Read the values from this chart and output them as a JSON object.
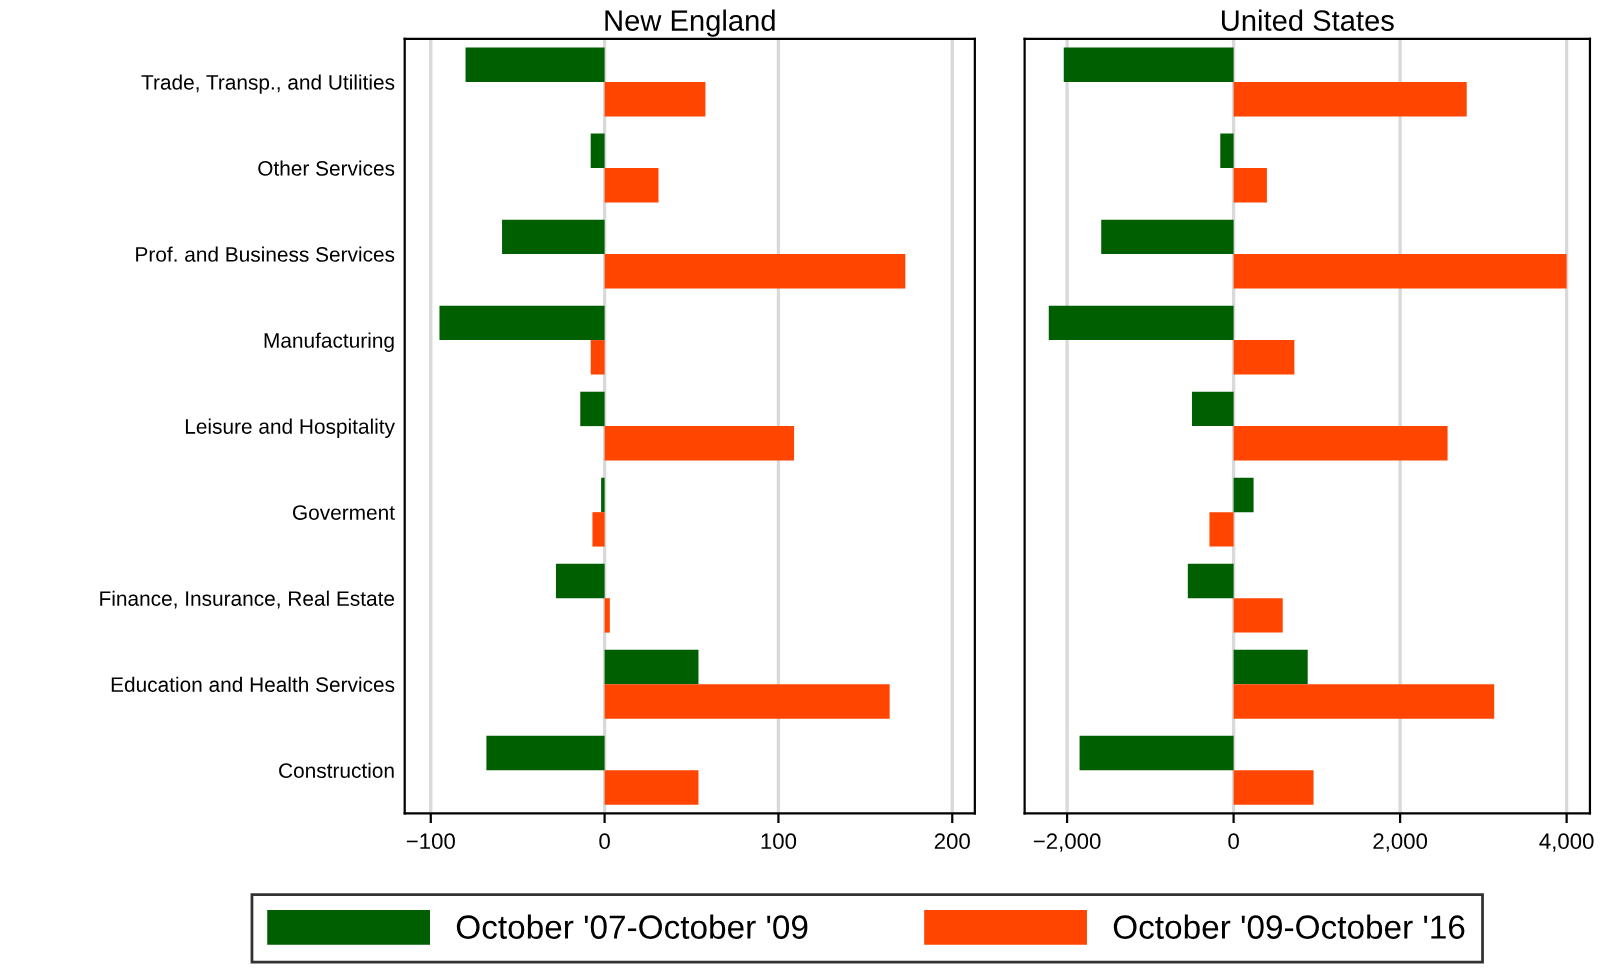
{
  "chart_data": [
    {
      "type": "bar",
      "orientation": "horizontal",
      "title": "New England",
      "categories": [
        "Trade, Transp., and Utilities",
        "Other Services",
        "Prof. and Business Services",
        "Manufacturing",
        "Leisure and Hospitality",
        "Goverment",
        "Finance, Insurance, Real Estate",
        "Education and Health Services",
        "Construction"
      ],
      "series": [
        {
          "name": "October '07-October '09",
          "color": "#005f00",
          "values": [
            -80,
            -8,
            -59,
            -95,
            -14,
            -2,
            -28,
            54,
            -68
          ]
        },
        {
          "name": "October '09-October '16",
          "color": "#ff4500",
          "values": [
            58,
            31,
            173,
            -8,
            109,
            -7,
            3,
            164,
            54
          ]
        }
      ],
      "xlim": [
        -115,
        213
      ],
      "xticks": [
        {
          "value": -100,
          "label": "−100"
        },
        0,
        100,
        200
      ],
      "grid": "x",
      "legend": "bottom"
    },
    {
      "type": "bar",
      "orientation": "horizontal",
      "title": "United States",
      "categories": [
        null,
        null,
        null,
        null,
        null,
        null,
        null,
        null,
        null
      ],
      "series": [
        {
          "color": "#005f00",
          "values": [
            -2040,
            -160,
            -1590,
            -2220,
            -500,
            240,
            -550,
            890,
            -1850
          ]
        },
        {
          "color": "#ff4500",
          "values": [
            2800,
            400,
            4000,
            730,
            2570,
            -290,
            590,
            3130,
            960
          ]
        }
      ],
      "xlim": [
        -2510,
        4280
      ],
      "xticks": [
        {
          "value": -2000,
          "label": "−2,000"
        },
        {
          "value": 0,
          "label": "0"
        },
        {
          "value": 2000,
          "label": "2,000"
        },
        {
          "value": 4000,
          "label": "4,000"
        }
      ],
      "grid": "x"
    }
  ]
}
